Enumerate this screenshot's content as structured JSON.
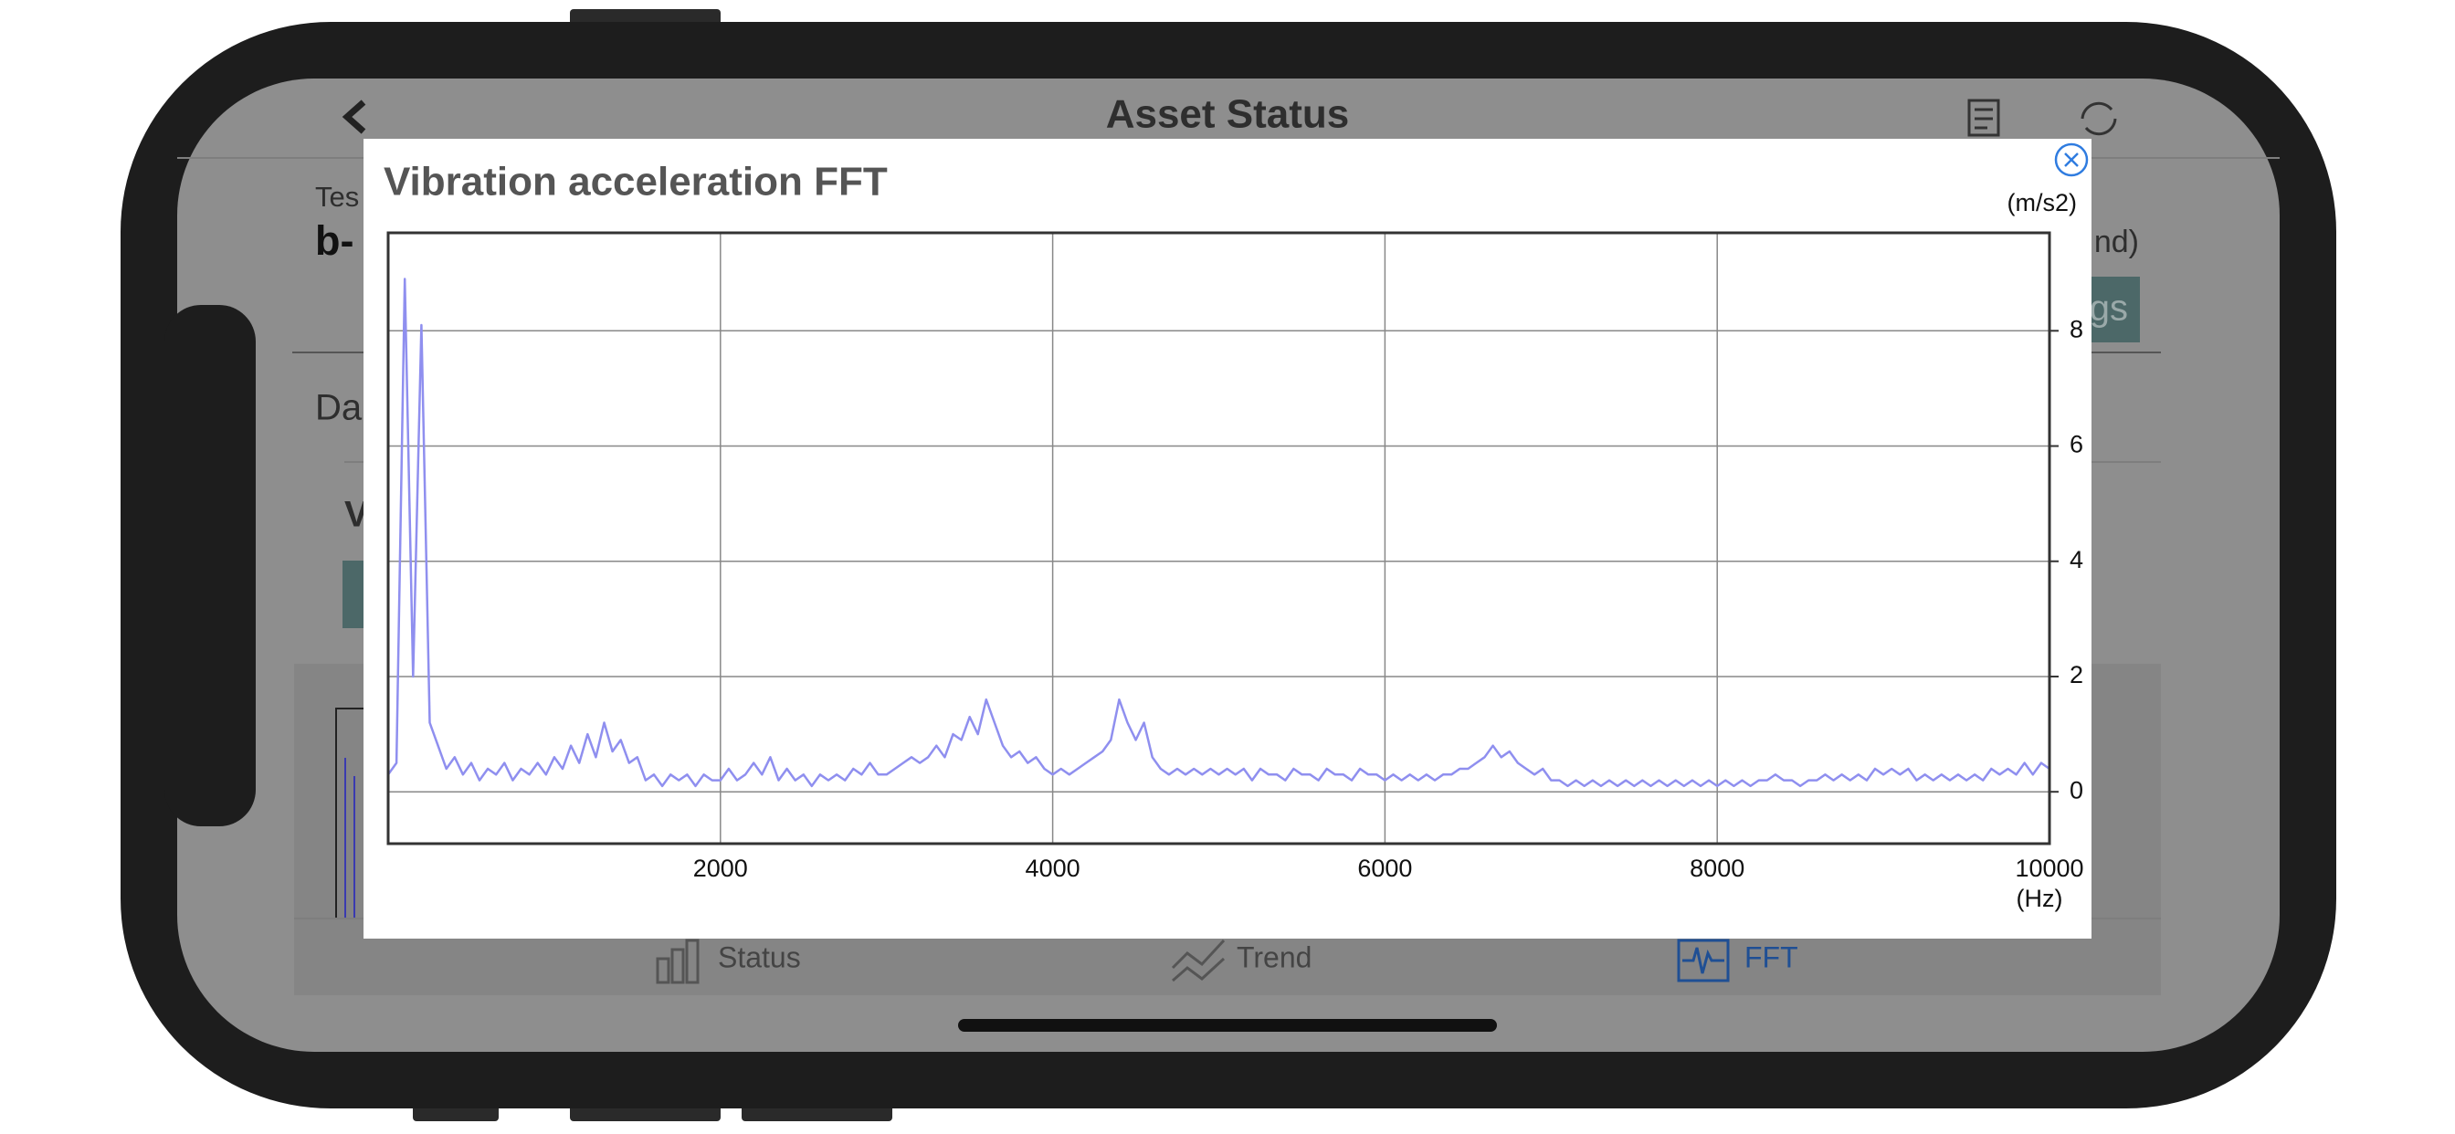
{
  "header": {
    "title": "Asset Status"
  },
  "background": {
    "fragments": [
      "Tes",
      "b-",
      "nd)",
      "gs",
      "Da",
      "V"
    ]
  },
  "tabs": [
    "Status",
    "Trend",
    "FFT"
  ],
  "chart_data": {
    "type": "line",
    "title": "Vibration acceleration FFT",
    "y_label": "(m/s2)",
    "x_label": "(Hz)",
    "color": "#8f8fef",
    "grid": true,
    "y_axis_side": "right",
    "xlim": [
      0,
      10000
    ],
    "ylim": [
      -0.9,
      9.7
    ],
    "xticks": [
      2000,
      4000,
      6000,
      8000,
      10000
    ],
    "yticks": [
      0,
      2,
      4,
      6,
      8
    ],
    "x": [
      0,
      50,
      100,
      150,
      200,
      250,
      300,
      350,
      400,
      450,
      500,
      550,
      600,
      650,
      700,
      750,
      800,
      850,
      900,
      950,
      1000,
      1050,
      1100,
      1150,
      1200,
      1250,
      1300,
      1350,
      1400,
      1450,
      1500,
      1550,
      1600,
      1650,
      1700,
      1750,
      1800,
      1850,
      1900,
      1950,
      2000,
      2050,
      2100,
      2150,
      2200,
      2250,
      2300,
      2350,
      2400,
      2450,
      2500,
      2550,
      2600,
      2650,
      2700,
      2750,
      2800,
      2850,
      2900,
      2950,
      3000,
      3050,
      3100,
      3150,
      3200,
      3250,
      3300,
      3350,
      3400,
      3450,
      3500,
      3550,
      3600,
      3650,
      3700,
      3750,
      3800,
      3850,
      3900,
      3950,
      4000,
      4050,
      4100,
      4150,
      4200,
      4250,
      4300,
      4350,
      4400,
      4450,
      4500,
      4550,
      4600,
      4650,
      4700,
      4750,
      4800,
      4850,
      4900,
      4950,
      5000,
      5050,
      5100,
      5150,
      5200,
      5250,
      5300,
      5350,
      5400,
      5450,
      5500,
      5550,
      5600,
      5650,
      5700,
      5750,
      5800,
      5850,
      5900,
      5950,
      6000,
      6050,
      6100,
      6150,
      6200,
      6250,
      6300,
      6350,
      6400,
      6450,
      6500,
      6550,
      6600,
      6650,
      6700,
      6750,
      6800,
      6850,
      6900,
      6950,
      7000,
      7050,
      7100,
      7150,
      7200,
      7250,
      7300,
      7350,
      7400,
      7450,
      7500,
      7550,
      7600,
      7650,
      7700,
      7750,
      7800,
      7850,
      7900,
      7950,
      8000,
      8050,
      8100,
      8150,
      8200,
      8250,
      8300,
      8350,
      8400,
      8450,
      8500,
      8550,
      8600,
      8650,
      8700,
      8750,
      8800,
      8850,
      8900,
      8950,
      9000,
      9050,
      9100,
      9150,
      9200,
      9250,
      9300,
      9350,
      9400,
      9450,
      9500,
      9550,
      9600,
      9650,
      9700,
      9750,
      9800,
      9850,
      9900,
      9950,
      10000
    ],
    "values": [
      0.3,
      0.5,
      8.9,
      2.0,
      8.1,
      1.2,
      0.8,
      0.4,
      0.6,
      0.3,
      0.5,
      0.2,
      0.4,
      0.3,
      0.5,
      0.2,
      0.4,
      0.3,
      0.5,
      0.3,
      0.6,
      0.4,
      0.8,
      0.5,
      1.0,
      0.6,
      1.2,
      0.7,
      0.9,
      0.5,
      0.6,
      0.2,
      0.3,
      0.1,
      0.3,
      0.2,
      0.3,
      0.1,
      0.3,
      0.2,
      0.2,
      0.4,
      0.2,
      0.3,
      0.5,
      0.3,
      0.6,
      0.2,
      0.4,
      0.2,
      0.3,
      0.1,
      0.3,
      0.2,
      0.3,
      0.2,
      0.4,
      0.3,
      0.5,
      0.3,
      0.3,
      0.4,
      0.5,
      0.6,
      0.5,
      0.6,
      0.8,
      0.6,
      1.0,
      0.9,
      1.3,
      1.0,
      1.6,
      1.2,
      0.8,
      0.6,
      0.7,
      0.5,
      0.6,
      0.4,
      0.3,
      0.4,
      0.3,
      0.4,
      0.5,
      0.6,
      0.7,
      0.9,
      1.6,
      1.2,
      0.9,
      1.2,
      0.6,
      0.4,
      0.3,
      0.4,
      0.3,
      0.4,
      0.3,
      0.4,
      0.3,
      0.4,
      0.3,
      0.4,
      0.2,
      0.4,
      0.3,
      0.3,
      0.2,
      0.4,
      0.3,
      0.3,
      0.2,
      0.4,
      0.3,
      0.3,
      0.2,
      0.4,
      0.3,
      0.3,
      0.2,
      0.3,
      0.2,
      0.3,
      0.2,
      0.3,
      0.2,
      0.3,
      0.3,
      0.4,
      0.4,
      0.5,
      0.6,
      0.8,
      0.6,
      0.7,
      0.5,
      0.4,
      0.3,
      0.4,
      0.2,
      0.2,
      0.1,
      0.2,
      0.1,
      0.2,
      0.1,
      0.2,
      0.1,
      0.2,
      0.1,
      0.2,
      0.1,
      0.2,
      0.1,
      0.2,
      0.1,
      0.2,
      0.1,
      0.2,
      0.1,
      0.2,
      0.1,
      0.2,
      0.1,
      0.2,
      0.2,
      0.3,
      0.2,
      0.2,
      0.1,
      0.2,
      0.2,
      0.3,
      0.2,
      0.3,
      0.2,
      0.3,
      0.2,
      0.4,
      0.3,
      0.4,
      0.3,
      0.4,
      0.2,
      0.3,
      0.2,
      0.3,
      0.2,
      0.3,
      0.2,
      0.3,
      0.2,
      0.4,
      0.3,
      0.4,
      0.3,
      0.5,
      0.3,
      0.5,
      0.4
    ]
  }
}
